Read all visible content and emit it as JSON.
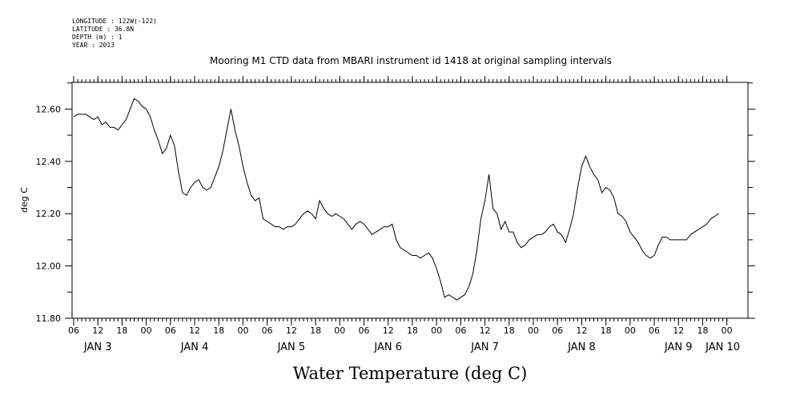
{
  "header": {
    "lines": [
      "LONGITUDE : 122W(-122)",
      "LATITUDE : 36.8N",
      "DEPTH (m) : 1",
      "YEAR : 2013"
    ]
  },
  "chart_data": {
    "type": "line",
    "title": "Mooring M1 CTD data from MBARI instrument id 1418 at original sampling intervals",
    "xlabel": "Water Temperature (deg C)",
    "ylabel": "deg C",
    "ylim": [
      11.8,
      12.7
    ],
    "yticks": [
      "12.60",
      "12.40",
      "12.20",
      "12.00",
      "11.80"
    ],
    "ytick_values": [
      12.6,
      12.4,
      12.2,
      12.0,
      11.8
    ],
    "xlim": [
      6,
      166
    ],
    "hour_labels": [
      "06",
      "12",
      "18",
      "00",
      "06",
      "12",
      "18",
      "00",
      "06",
      "12",
      "18",
      "00",
      "06",
      "12",
      "18",
      "00",
      "06",
      "12",
      "18",
      "00",
      "06",
      "12",
      "18",
      "00",
      "06",
      "12",
      "18",
      "00"
    ],
    "hour_label_hours": [
      6,
      12,
      18,
      24,
      30,
      36,
      42,
      48,
      54,
      60,
      66,
      72,
      78,
      84,
      90,
      96,
      102,
      108,
      114,
      120,
      126,
      132,
      138,
      144,
      150,
      156,
      162,
      168
    ],
    "day_labels": [
      "JAN 3",
      "JAN 4",
      "JAN 5",
      "JAN 6",
      "JAN 7",
      "JAN 8",
      "JAN 9",
      "JAN 10"
    ],
    "day_label_hours": [
      12,
      36,
      60,
      84,
      108,
      132,
      156,
      167
    ],
    "grid": false,
    "series": [
      {
        "x": [
          6,
          7,
          8,
          9,
          10,
          11,
          12,
          13,
          14,
          15,
          16,
          17,
          18,
          19,
          20,
          21,
          22,
          23,
          24,
          25,
          26,
          27,
          28,
          29,
          30,
          31,
          32,
          33,
          34,
          35,
          36,
          37,
          38,
          39,
          40,
          41,
          42,
          43,
          44,
          45,
          46,
          47,
          48,
          49,
          50,
          51,
          52,
          53,
          54,
          55,
          56,
          57,
          58,
          59,
          60,
          61,
          62,
          63,
          64,
          65,
          66,
          67,
          68,
          69,
          70,
          71,
          72,
          73,
          74,
          75,
          76,
          77,
          78,
          79,
          80,
          81,
          82,
          83,
          84,
          85,
          86,
          87,
          88,
          89,
          90,
          91,
          92,
          93,
          94,
          95,
          96,
          97,
          98,
          99,
          100,
          101,
          102,
          103,
          104,
          105,
          106,
          107,
          108,
          109,
          110,
          111,
          112,
          113,
          114,
          115,
          116,
          117,
          118,
          119,
          120,
          121,
          122,
          123,
          124,
          125,
          126,
          127,
          128,
          129,
          130,
          131,
          132,
          133,
          134,
          135,
          136,
          137,
          138,
          139,
          140,
          141,
          142,
          143,
          144,
          145,
          146,
          147,
          148,
          149,
          150,
          151,
          152,
          153,
          154,
          155,
          156,
          157,
          158,
          159,
          160,
          161,
          162,
          163,
          164,
          165,
          166
        ],
        "values": [
          12.57,
          12.58,
          12.58,
          12.58,
          12.57,
          12.56,
          12.57,
          12.54,
          12.55,
          12.53,
          12.53,
          12.52,
          12.54,
          12.56,
          12.6,
          12.64,
          12.63,
          12.61,
          12.6,
          12.57,
          12.52,
          12.48,
          12.43,
          12.45,
          12.5,
          12.46,
          12.36,
          12.28,
          12.27,
          12.3,
          12.32,
          12.33,
          12.3,
          12.29,
          12.3,
          12.34,
          12.38,
          12.44,
          12.52,
          12.6,
          12.52,
          12.46,
          12.38,
          12.32,
          12.27,
          12.25,
          12.26,
          12.18,
          12.17,
          12.16,
          12.15,
          12.15,
          12.14,
          12.15,
          12.15,
          12.16,
          12.18,
          12.2,
          12.21,
          12.2,
          12.18,
          12.25,
          12.22,
          12.2,
          12.19,
          12.2,
          12.19,
          12.18,
          12.16,
          12.14,
          12.16,
          12.17,
          12.16,
          12.14,
          12.12,
          12.13,
          12.14,
          12.15,
          12.15,
          12.16,
          12.1,
          12.07,
          12.06,
          12.05,
          12.04,
          12.04,
          12.03,
          12.04,
          12.05,
          12.03,
          11.99,
          11.94,
          11.88,
          11.89,
          11.88,
          11.87,
          11.88,
          11.89,
          11.92,
          11.97,
          12.06,
          12.18,
          12.25,
          12.35,
          12.22,
          12.2,
          12.14,
          12.17,
          12.13,
          12.13,
          12.09,
          12.07,
          12.08,
          12.1,
          12.11,
          12.12,
          12.12,
          12.13,
          12.15,
          12.16,
          12.13,
          12.12,
          12.09,
          12.14,
          12.2,
          12.3,
          12.38,
          12.42,
          12.38,
          12.35,
          12.33,
          12.28,
          12.3,
          12.29,
          12.26,
          12.2,
          12.19,
          12.17,
          12.13,
          12.11,
          12.09,
          12.06,
          12.04,
          12.03,
          12.04,
          12.08,
          12.11,
          12.11,
          12.1,
          12.1,
          12.1,
          12.1,
          12.1,
          12.12,
          12.13,
          12.14,
          12.15,
          12.16,
          12.18,
          12.19,
          12.2
        ]
      }
    ]
  }
}
